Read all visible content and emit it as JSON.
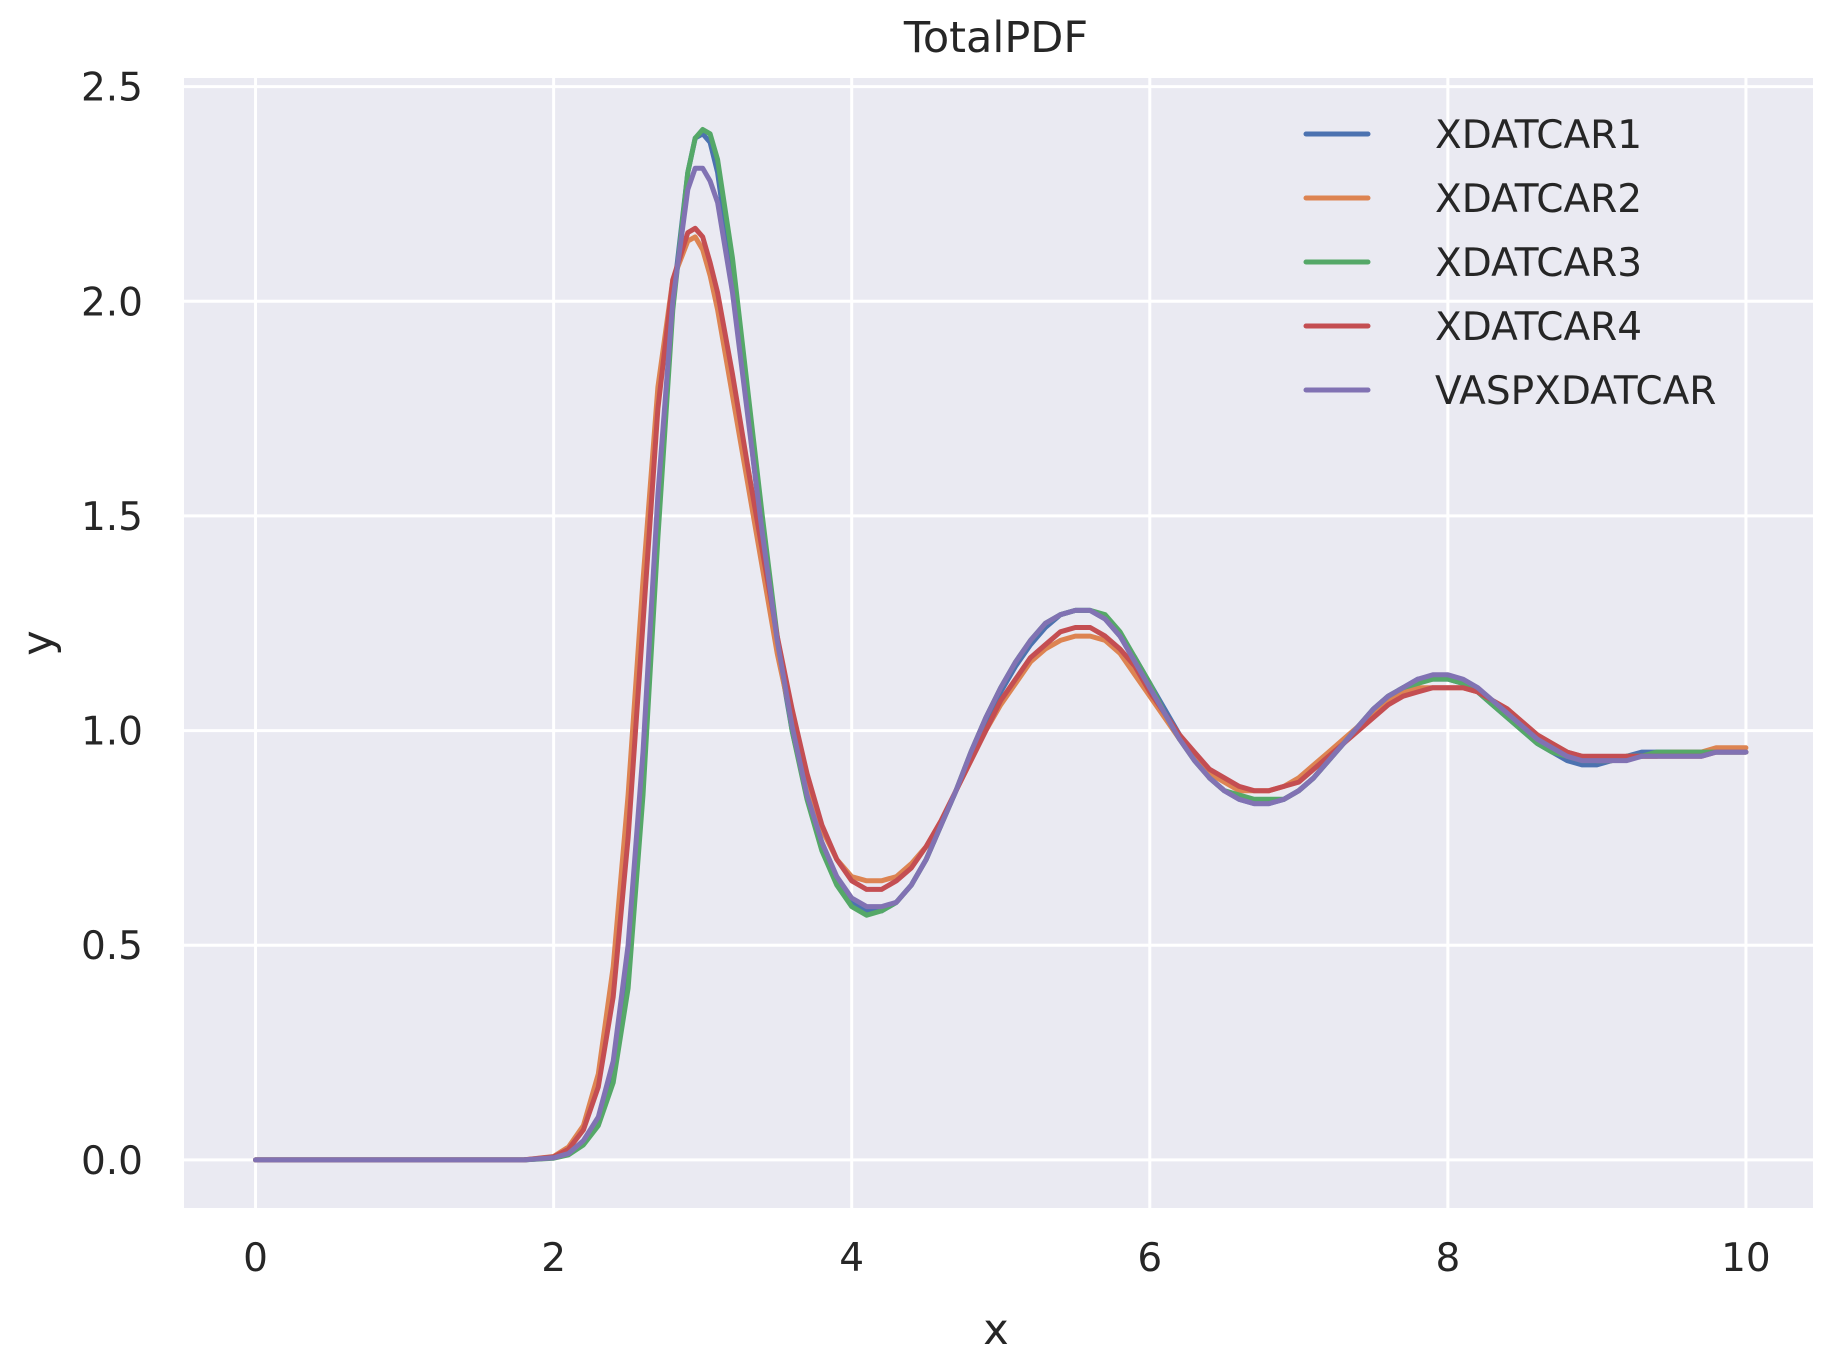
{
  "chart_data": {
    "type": "line",
    "title": "TotalPDF",
    "xlabel": "x",
    "ylabel": "y",
    "xlim": [
      -0.48,
      10.45
    ],
    "ylim": [
      -0.112,
      2.52
    ],
    "xticks": [
      0,
      2,
      4,
      6,
      8,
      10
    ],
    "xtick_labels": [
      "0",
      "2",
      "4",
      "6",
      "8",
      "10"
    ],
    "yticks": [
      0.0,
      0.5,
      1.0,
      1.5,
      2.0,
      2.5
    ],
    "ytick_labels": [
      "0.0",
      "0.5",
      "1.0",
      "1.5",
      "2.0",
      "2.5"
    ],
    "grid": true,
    "legend_position": "top-right",
    "colors": {
      "background": "#eaeaf2",
      "grid": "#ffffff",
      "XDATCAR1": "#4c72b0",
      "XDATCAR2": "#dd8452",
      "XDATCAR3": "#55a868",
      "XDATCAR4": "#c44e52",
      "VASPXDATCAR": "#8172b3"
    },
    "series": [
      {
        "name": "XDATCAR1",
        "color": "#4c72b0",
        "x": [
          0,
          1.8,
          2.0,
          2.1,
          2.2,
          2.3,
          2.4,
          2.5,
          2.6,
          2.7,
          2.8,
          2.9,
          2.95,
          3.0,
          3.05,
          3.1,
          3.2,
          3.3,
          3.4,
          3.5,
          3.6,
          3.7,
          3.8,
          3.9,
          4.0,
          4.1,
          4.2,
          4.3,
          4.4,
          4.5,
          4.6,
          4.7,
          4.8,
          4.9,
          5.0,
          5.1,
          5.2,
          5.3,
          5.4,
          5.5,
          5.6,
          5.7,
          5.8,
          5.9,
          6.0,
          6.1,
          6.2,
          6.3,
          6.4,
          6.5,
          6.6,
          6.7,
          6.8,
          6.9,
          7.0,
          7.1,
          7.2,
          7.3,
          7.4,
          7.5,
          7.6,
          7.7,
          7.8,
          7.9,
          8.0,
          8.1,
          8.2,
          8.3,
          8.4,
          8.5,
          8.6,
          8.7,
          8.8,
          8.9,
          9.0,
          9.1,
          9.2,
          9.3,
          9.4,
          9.5,
          9.6,
          9.7,
          9.8,
          9.9,
          10.0
        ],
        "y": [
          0,
          0,
          0.005,
          0.015,
          0.04,
          0.09,
          0.2,
          0.45,
          0.9,
          1.5,
          2.0,
          2.3,
          2.38,
          2.39,
          2.37,
          2.3,
          2.05,
          1.75,
          1.45,
          1.2,
          1.0,
          0.85,
          0.73,
          0.65,
          0.6,
          0.58,
          0.58,
          0.6,
          0.64,
          0.7,
          0.78,
          0.86,
          0.94,
          1.02,
          1.09,
          1.15,
          1.2,
          1.24,
          1.27,
          1.28,
          1.28,
          1.26,
          1.22,
          1.17,
          1.11,
          1.05,
          0.99,
          0.94,
          0.89,
          0.86,
          0.84,
          0.83,
          0.83,
          0.84,
          0.86,
          0.89,
          0.93,
          0.97,
          1.01,
          1.05,
          1.08,
          1.1,
          1.12,
          1.12,
          1.12,
          1.11,
          1.09,
          1.06,
          1.03,
          1.0,
          0.97,
          0.95,
          0.93,
          0.92,
          0.92,
          0.93,
          0.94,
          0.95,
          0.95,
          0.95,
          0.95,
          0.95,
          0.95,
          0.95,
          0.95
        ]
      },
      {
        "name": "XDATCAR2",
        "color": "#dd8452",
        "x": [
          0,
          1.8,
          2.0,
          2.1,
          2.2,
          2.3,
          2.4,
          2.5,
          2.6,
          2.7,
          2.8,
          2.9,
          2.95,
          3.0,
          3.05,
          3.1,
          3.2,
          3.3,
          3.4,
          3.5,
          3.6,
          3.7,
          3.8,
          3.9,
          4.0,
          4.1,
          4.2,
          4.3,
          4.4,
          4.5,
          4.6,
          4.7,
          4.8,
          4.9,
          5.0,
          5.1,
          5.2,
          5.3,
          5.4,
          5.5,
          5.6,
          5.7,
          5.8,
          5.9,
          6.0,
          6.1,
          6.2,
          6.3,
          6.4,
          6.5,
          6.6,
          6.7,
          6.8,
          6.9,
          7.0,
          7.1,
          7.2,
          7.3,
          7.4,
          7.5,
          7.6,
          7.7,
          7.8,
          7.9,
          8.0,
          8.1,
          8.2,
          8.3,
          8.4,
          8.5,
          8.6,
          8.7,
          8.8,
          8.9,
          9.0,
          9.1,
          9.2,
          9.3,
          9.4,
          9.5,
          9.6,
          9.7,
          9.8,
          9.9,
          10.0
        ],
        "y": [
          0,
          0,
          0.008,
          0.03,
          0.08,
          0.2,
          0.45,
          0.85,
          1.35,
          1.8,
          2.05,
          2.14,
          2.15,
          2.12,
          2.06,
          1.98,
          1.78,
          1.58,
          1.38,
          1.18,
          1.02,
          0.88,
          0.77,
          0.7,
          0.66,
          0.65,
          0.65,
          0.66,
          0.69,
          0.73,
          0.79,
          0.86,
          0.93,
          1.0,
          1.06,
          1.11,
          1.16,
          1.19,
          1.21,
          1.22,
          1.22,
          1.21,
          1.18,
          1.13,
          1.08,
          1.03,
          0.98,
          0.94,
          0.9,
          0.88,
          0.86,
          0.86,
          0.86,
          0.87,
          0.89,
          0.92,
          0.95,
          0.98,
          1.01,
          1.04,
          1.07,
          1.09,
          1.1,
          1.1,
          1.1,
          1.1,
          1.09,
          1.07,
          1.05,
          1.02,
          0.99,
          0.97,
          0.95,
          0.94,
          0.93,
          0.93,
          0.94,
          0.94,
          0.94,
          0.95,
          0.95,
          0.95,
          0.96,
          0.96,
          0.96
        ]
      },
      {
        "name": "XDATCAR3",
        "color": "#55a868",
        "x": [
          0,
          1.8,
          2.0,
          2.1,
          2.2,
          2.3,
          2.4,
          2.5,
          2.6,
          2.7,
          2.8,
          2.9,
          2.95,
          3.0,
          3.05,
          3.1,
          3.2,
          3.3,
          3.4,
          3.5,
          3.6,
          3.7,
          3.8,
          3.9,
          4.0,
          4.1,
          4.2,
          4.3,
          4.4,
          4.5,
          4.6,
          4.7,
          4.8,
          4.9,
          5.0,
          5.1,
          5.2,
          5.3,
          5.4,
          5.5,
          5.6,
          5.7,
          5.8,
          5.9,
          6.0,
          6.1,
          6.2,
          6.3,
          6.4,
          6.5,
          6.6,
          6.7,
          6.8,
          6.9,
          7.0,
          7.1,
          7.2,
          7.3,
          7.4,
          7.5,
          7.6,
          7.7,
          7.8,
          7.9,
          8.0,
          8.1,
          8.2,
          8.3,
          8.4,
          8.5,
          8.6,
          8.7,
          8.8,
          8.9,
          9.0,
          9.1,
          9.2,
          9.3,
          9.4,
          9.5,
          9.6,
          9.7,
          9.8,
          9.9,
          10.0
        ],
        "y": [
          0,
          0,
          0.004,
          0.012,
          0.035,
          0.08,
          0.18,
          0.4,
          0.85,
          1.45,
          1.98,
          2.3,
          2.38,
          2.4,
          2.39,
          2.33,
          2.1,
          1.8,
          1.5,
          1.22,
          1.0,
          0.84,
          0.72,
          0.64,
          0.59,
          0.57,
          0.58,
          0.6,
          0.64,
          0.7,
          0.78,
          0.86,
          0.95,
          1.03,
          1.1,
          1.16,
          1.21,
          1.25,
          1.27,
          1.28,
          1.28,
          1.27,
          1.23,
          1.17,
          1.11,
          1.04,
          0.98,
          0.93,
          0.89,
          0.86,
          0.85,
          0.84,
          0.84,
          0.84,
          0.86,
          0.89,
          0.93,
          0.97,
          1.01,
          1.05,
          1.08,
          1.1,
          1.11,
          1.12,
          1.12,
          1.11,
          1.09,
          1.06,
          1.03,
          1.0,
          0.97,
          0.95,
          0.94,
          0.93,
          0.93,
          0.93,
          0.94,
          0.94,
          0.95,
          0.95,
          0.95,
          0.95,
          0.95,
          0.95,
          0.95
        ]
      },
      {
        "name": "XDATCAR4",
        "color": "#c44e52",
        "x": [
          0,
          1.8,
          2.0,
          2.1,
          2.2,
          2.3,
          2.4,
          2.5,
          2.6,
          2.7,
          2.8,
          2.9,
          2.95,
          3.0,
          3.05,
          3.1,
          3.2,
          3.3,
          3.4,
          3.5,
          3.6,
          3.7,
          3.8,
          3.9,
          4.0,
          4.1,
          4.2,
          4.3,
          4.4,
          4.5,
          4.6,
          4.7,
          4.8,
          4.9,
          5.0,
          5.1,
          5.2,
          5.3,
          5.4,
          5.5,
          5.6,
          5.7,
          5.8,
          5.9,
          6.0,
          6.1,
          6.2,
          6.3,
          6.4,
          6.5,
          6.6,
          6.7,
          6.8,
          6.9,
          7.0,
          7.1,
          7.2,
          7.3,
          7.4,
          7.5,
          7.6,
          7.7,
          7.8,
          7.9,
          8.0,
          8.1,
          8.2,
          8.3,
          8.4,
          8.5,
          8.6,
          8.7,
          8.8,
          8.9,
          9.0,
          9.1,
          9.2,
          9.3,
          9.4,
          9.5,
          9.6,
          9.7,
          9.8,
          9.9,
          10.0
        ],
        "y": [
          0,
          0,
          0.007,
          0.025,
          0.07,
          0.17,
          0.38,
          0.75,
          1.25,
          1.75,
          2.05,
          2.16,
          2.17,
          2.15,
          2.09,
          2.02,
          1.83,
          1.62,
          1.42,
          1.22,
          1.05,
          0.9,
          0.78,
          0.7,
          0.65,
          0.63,
          0.63,
          0.65,
          0.68,
          0.73,
          0.79,
          0.86,
          0.93,
          1.0,
          1.07,
          1.12,
          1.17,
          1.2,
          1.23,
          1.24,
          1.24,
          1.22,
          1.19,
          1.15,
          1.09,
          1.04,
          0.99,
          0.95,
          0.91,
          0.89,
          0.87,
          0.86,
          0.86,
          0.87,
          0.88,
          0.91,
          0.94,
          0.97,
          1.0,
          1.03,
          1.06,
          1.08,
          1.09,
          1.1,
          1.1,
          1.1,
          1.09,
          1.07,
          1.05,
          1.02,
          0.99,
          0.97,
          0.95,
          0.94,
          0.94,
          0.94,
          0.94,
          0.94,
          0.94,
          0.94,
          0.94,
          0.94,
          0.95,
          0.95,
          0.95
        ]
      },
      {
        "name": "VASPXDATCAR",
        "color": "#8172b3",
        "x": [
          0,
          1.8,
          2.0,
          2.1,
          2.2,
          2.3,
          2.4,
          2.5,
          2.6,
          2.7,
          2.8,
          2.9,
          2.95,
          3.0,
          3.05,
          3.1,
          3.2,
          3.3,
          3.4,
          3.5,
          3.6,
          3.7,
          3.8,
          3.9,
          4.0,
          4.1,
          4.2,
          4.3,
          4.4,
          4.5,
          4.6,
          4.7,
          4.8,
          4.9,
          5.0,
          5.1,
          5.2,
          5.3,
          5.4,
          5.5,
          5.6,
          5.7,
          5.8,
          5.9,
          6.0,
          6.1,
          6.2,
          6.3,
          6.4,
          6.5,
          6.6,
          6.7,
          6.8,
          6.9,
          7.0,
          7.1,
          7.2,
          7.3,
          7.4,
          7.5,
          7.6,
          7.7,
          7.8,
          7.9,
          8.0,
          8.1,
          8.2,
          8.3,
          8.4,
          8.5,
          8.6,
          8.7,
          8.8,
          8.9,
          9.0,
          9.1,
          9.2,
          9.3,
          9.4,
          9.5,
          9.6,
          9.7,
          9.8,
          9.9,
          10.0
        ],
        "y": [
          0,
          0,
          0.005,
          0.015,
          0.045,
          0.1,
          0.23,
          0.5,
          0.95,
          1.55,
          2.0,
          2.26,
          2.31,
          2.31,
          2.28,
          2.23,
          2.02,
          1.74,
          1.46,
          1.21,
          1.01,
          0.85,
          0.74,
          0.66,
          0.61,
          0.59,
          0.59,
          0.6,
          0.64,
          0.7,
          0.78,
          0.86,
          0.95,
          1.03,
          1.1,
          1.16,
          1.21,
          1.25,
          1.27,
          1.28,
          1.28,
          1.26,
          1.22,
          1.16,
          1.1,
          1.04,
          0.98,
          0.93,
          0.89,
          0.86,
          0.84,
          0.83,
          0.83,
          0.84,
          0.86,
          0.89,
          0.93,
          0.97,
          1.01,
          1.05,
          1.08,
          1.1,
          1.12,
          1.13,
          1.13,
          1.12,
          1.1,
          1.07,
          1.04,
          1.01,
          0.98,
          0.96,
          0.94,
          0.93,
          0.93,
          0.93,
          0.93,
          0.94,
          0.94,
          0.94,
          0.94,
          0.94,
          0.95,
          0.95,
          0.95
        ]
      }
    ]
  }
}
